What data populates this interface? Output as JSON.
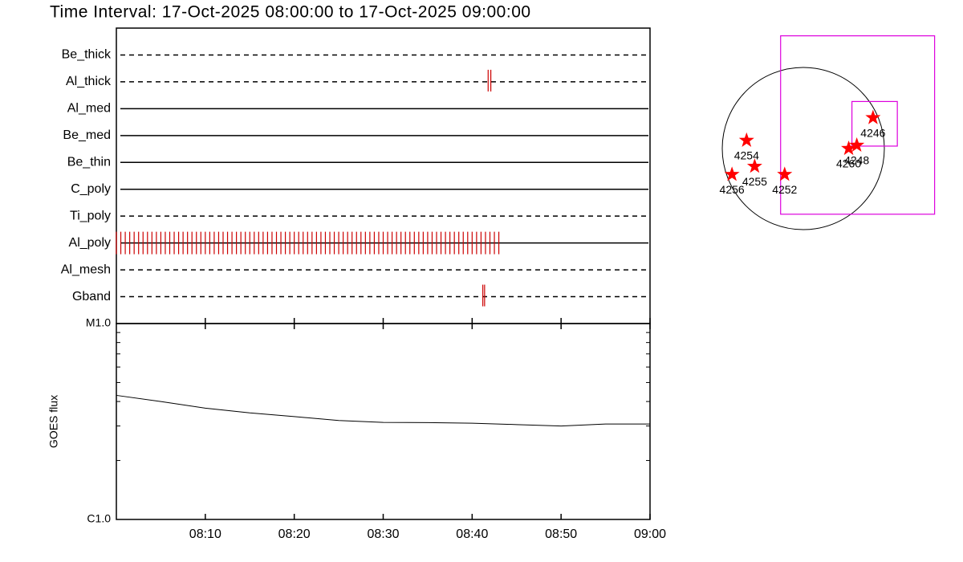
{
  "chart_data": [
    {
      "type": "timeline",
      "title": "Time Interval: 17-Oct-2025 08:00:00 to 17-Oct-2025 09:00:00",
      "xlim": [
        0,
        60
      ],
      "xticks": [
        {
          "value": 10,
          "label": "08:10"
        },
        {
          "value": 20,
          "label": "08:20"
        },
        {
          "value": 30,
          "label": "08:30"
        },
        {
          "value": 40,
          "label": "08:40"
        },
        {
          "value": 50,
          "label": "08:50"
        },
        {
          "value": 60,
          "label": "09:00"
        }
      ],
      "color": "#cc0000",
      "series": [
        {
          "name": "Be_thick",
          "style": "dashed",
          "events": []
        },
        {
          "name": "Al_thick",
          "style": "dashed",
          "events": [
            41.8,
            42.1
          ]
        },
        {
          "name": "Al_med",
          "style": "solid",
          "events": []
        },
        {
          "name": "Be_med",
          "style": "solid",
          "events": []
        },
        {
          "name": "Be_thin",
          "style": "solid",
          "events": []
        },
        {
          "name": "C_poly",
          "style": "solid",
          "events": []
        },
        {
          "name": "Ti_poly",
          "style": "dashed",
          "events": []
        },
        {
          "name": "Al_poly",
          "style": "solid",
          "events": [
            0,
            0.5,
            1,
            1.5,
            2,
            2.5,
            3,
            3.5,
            4,
            4.5,
            5,
            5.5,
            6,
            6.5,
            7,
            7.5,
            8,
            8.5,
            9,
            9.5,
            10,
            10.5,
            11,
            11.5,
            12,
            12.5,
            13,
            13.5,
            14,
            14.5,
            15,
            15.5,
            16,
            16.5,
            17,
            17.5,
            18,
            18.5,
            19,
            19.5,
            20,
            20.5,
            21,
            21.5,
            22,
            22.5,
            23,
            23.5,
            24,
            24.5,
            25,
            25.5,
            26,
            26.5,
            27,
            27.5,
            28,
            28.5,
            29,
            29.5,
            30,
            30.5,
            31,
            31.5,
            32,
            32.5,
            33,
            33.5,
            34,
            34.5,
            35,
            35.5,
            36,
            36.5,
            37,
            37.5,
            38,
            38.5,
            39,
            39.5,
            40,
            40.5,
            41,
            41.5,
            42,
            42.5,
            43
          ]
        },
        {
          "name": "Al_mesh",
          "style": "dashed",
          "events": []
        },
        {
          "name": "Gband",
          "style": "dashed",
          "events": [
            41.2,
            41.4
          ]
        }
      ]
    },
    {
      "type": "line",
      "ylabel": "GOES flux",
      "log": true,
      "xlim": [
        0,
        60
      ],
      "ylim": [
        1e-06,
        1e-05
      ],
      "yticks": [
        {
          "value": 1e-06,
          "label": "C1.0"
        },
        {
          "value": 1e-05,
          "label": "M1.0"
        }
      ],
      "yminorticks": [
        2e-06,
        3e-06,
        4e-06,
        5e-06,
        6e-06,
        7e-06,
        8e-06,
        9e-06
      ],
      "color": "#000000",
      "x": [
        0,
        5,
        10,
        15,
        20,
        25,
        30,
        35,
        40,
        45,
        50,
        55,
        60
      ],
      "values": [
        4.3e-06,
        4e-06,
        3.7e-06,
        3.5e-06,
        3.35e-06,
        3.2e-06,
        3.13e-06,
        3.12e-06,
        3.1e-06,
        3.05e-06,
        3e-06,
        3.07e-06,
        3.07e-06
      ]
    },
    {
      "type": "scatter",
      "xlim": [
        -1,
        1
      ],
      "color": "#ff0000",
      "box_color": "#dd00dd",
      "points": [
        {
          "label": "4254",
          "x": -0.7,
          "y": 0.1
        },
        {
          "label": "4255",
          "x": -0.6,
          "y": -0.22
        },
        {
          "label": "4256",
          "x": -0.88,
          "y": -0.32
        },
        {
          "label": "4252",
          "x": -0.23,
          "y": -0.32
        },
        {
          "label": "4260",
          "x": 0.56,
          "y": 0.0
        },
        {
          "label": "4248",
          "x": 0.66,
          "y": 0.04
        },
        {
          "label": "4246",
          "x": 0.86,
          "y": 0.38
        }
      ],
      "boxes": [
        {
          "x0": -0.28,
          "x1": 1.62,
          "y0": -0.81,
          "y1": 1.39
        },
        {
          "x0": 0.6,
          "x1": 1.16,
          "y0": 0.03,
          "y1": 0.58
        }
      ]
    }
  ]
}
